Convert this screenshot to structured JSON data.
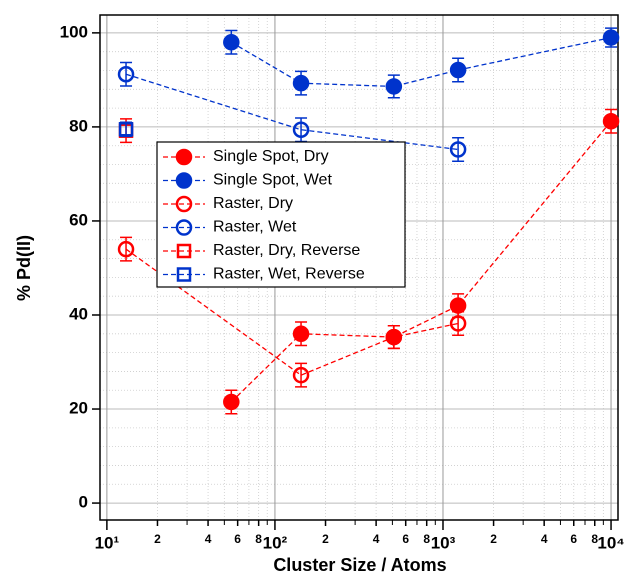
{
  "chart_data": {
    "type": "scatter",
    "xlabel": "Cluster Size / Atoms",
    "ylabel": "% Pd(II)",
    "xscale": "log",
    "xlim": [
      9.1,
      11000
    ],
    "ylim": [
      -3.6,
      103.8
    ],
    "xticks": [
      {
        "value": 10,
        "label": "10¹"
      },
      {
        "value": 20,
        "label": "2"
      },
      {
        "value": 40,
        "label": "4"
      },
      {
        "value": 60,
        "label": "6"
      },
      {
        "value": 80,
        "label": "8"
      },
      {
        "value": 100,
        "label": "10²"
      },
      {
        "value": 200,
        "label": "2"
      },
      {
        "value": 400,
        "label": "4"
      },
      {
        "value": 600,
        "label": "6"
      },
      {
        "value": 800,
        "label": "8"
      },
      {
        "value": 1000,
        "label": "10³"
      },
      {
        "value": 2000,
        "label": "2"
      },
      {
        "value": 4000,
        "label": "4"
      },
      {
        "value": 6000,
        "label": "6"
      },
      {
        "value": 8000,
        "label": "8"
      },
      {
        "value": 10000,
        "label": "10⁴"
      }
    ],
    "xminorticks": [
      30,
      50,
      70,
      90,
      300,
      500,
      700,
      900,
      3000,
      5000,
      7000,
      9000
    ],
    "yticks": [
      0,
      20,
      40,
      60,
      80,
      100
    ],
    "yminorticks": [
      4,
      8,
      12,
      16,
      24,
      28,
      32,
      36,
      44,
      48,
      52,
      56,
      64,
      68,
      72,
      76,
      84,
      88,
      92,
      96
    ],
    "grid": true,
    "legend": "upper left",
    "series": [
      {
        "name": "Single Spot, Dry",
        "color": "#ff0000",
        "marker": "circle",
        "filled": true,
        "x": [
          55,
          143,
          510,
          1230,
          10000
        ],
        "values": [
          21.5,
          36,
          35.3,
          42,
          81.2
        ],
        "errors": [
          2.5,
          2.5,
          2.4,
          2.5,
          2.5
        ]
      },
      {
        "name": "Single Spot, Wet",
        "color": "#0033cc",
        "marker": "circle",
        "filled": true,
        "x": [
          55,
          143,
          510,
          1230,
          10000
        ],
        "values": [
          98,
          89.3,
          88.6,
          92.1,
          99
        ],
        "errors": [
          2.5,
          2.5,
          2.4,
          2.5,
          2.0
        ]
      },
      {
        "name": "Raster, Dry",
        "color": "#ff0000",
        "marker": "circle",
        "filled": false,
        "x": [
          13,
          143,
          510,
          1230
        ],
        "values": [
          54,
          27.2,
          35.3,
          38.2
        ],
        "errors": [
          2.5,
          2.5,
          2.4,
          2.5
        ]
      },
      {
        "name": "Raster, Wet",
        "color": "#0033cc",
        "marker": "circle",
        "filled": false,
        "x": [
          13,
          143,
          1230
        ],
        "values": [
          91.2,
          79.4,
          75.2
        ],
        "errors": [
          2.5,
          2.5,
          2.5
        ]
      },
      {
        "name": "Raster, Dry, Reverse",
        "color": "#ff0000",
        "marker": "square",
        "filled": false,
        "x": [
          13
        ],
        "values": [
          79.2
        ],
        "errors": [
          2.5
        ]
      },
      {
        "name": "Raster, Wet, Reverse",
        "color": "#0033cc",
        "marker": "square",
        "filled": false,
        "x": [
          13
        ],
        "values": [
          79.5
        ],
        "errors": [
          1.5
        ]
      }
    ]
  }
}
